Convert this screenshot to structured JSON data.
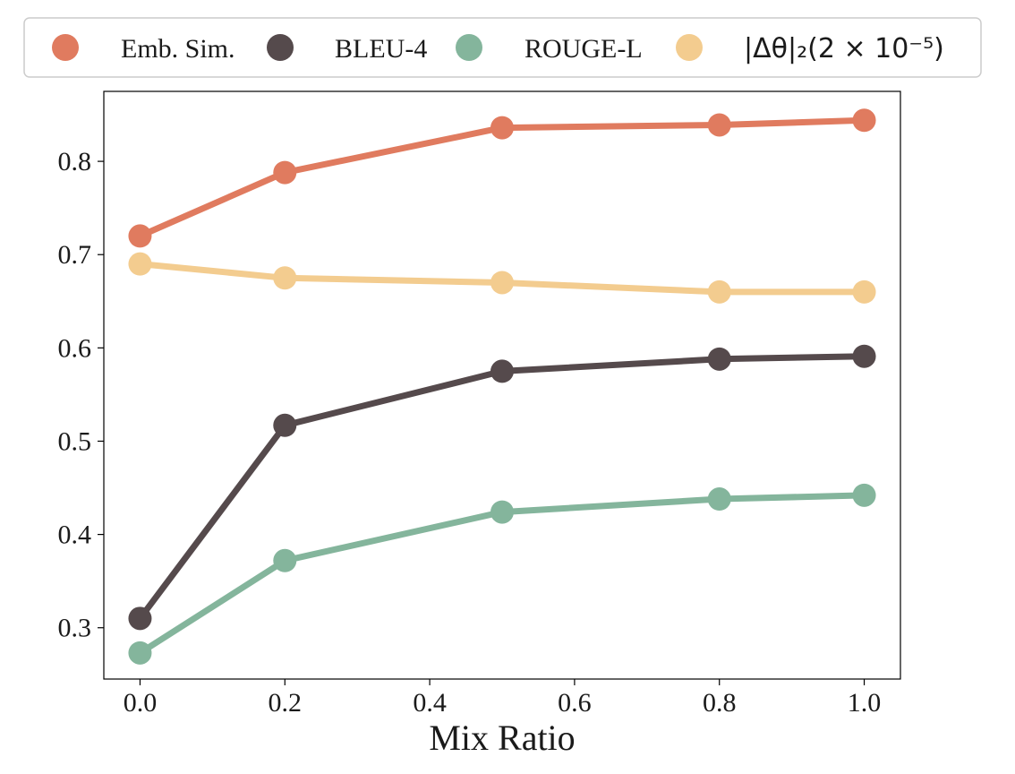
{
  "chart_data": {
    "type": "line",
    "title": "",
    "xlabel": "Mix Ratio",
    "ylabel": "",
    "x": [
      0.0,
      0.2,
      0.5,
      0.8,
      1.0
    ],
    "xlim": [
      -0.05,
      1.05
    ],
    "ylim": [
      0.245,
      0.875
    ],
    "xticks": [
      0.0,
      0.2,
      0.4,
      0.6,
      0.8,
      1.0
    ],
    "xtick_labels": [
      "0.0",
      "0.2",
      "0.4",
      "0.6",
      "0.8",
      "1.0"
    ],
    "yticks": [
      0.3,
      0.4,
      0.5,
      0.6,
      0.7,
      0.8
    ],
    "ytick_labels": [
      "0.3",
      "0.4",
      "0.5",
      "0.6",
      "0.7",
      "0.8"
    ],
    "grid": false,
    "legend_position": "top",
    "series": [
      {
        "name": "Emb. Sim.",
        "color": "#e07b5f",
        "values": [
          0.72,
          0.788,
          0.836,
          0.839,
          0.844
        ]
      },
      {
        "name": "BLEU-4",
        "color": "#554a4c",
        "values": [
          0.31,
          0.517,
          0.575,
          0.588,
          0.591
        ]
      },
      {
        "name": "ROUGE-L",
        "color": "#84b59c",
        "values": [
          0.273,
          0.372,
          0.424,
          0.438,
          0.442
        ]
      },
      {
        "name": "|Δθ|₂(2 × 10⁻⁵)",
        "color": "#f3cc8f",
        "values": [
          0.69,
          0.675,
          0.67,
          0.66,
          0.66
        ]
      }
    ]
  }
}
